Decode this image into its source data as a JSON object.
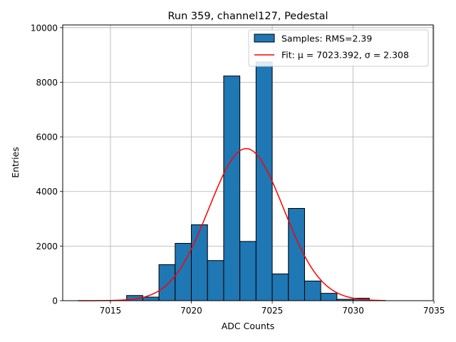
{
  "chart_data": {
    "type": "bar",
    "title": "Run 359, channel127, Pedestal",
    "xlabel": "ADC Counts",
    "ylabel": "Entries",
    "xlim": [
      7012.05,
      7034.95
    ],
    "ylim": [
      0,
      10100
    ],
    "xticks": [
      7015,
      7020,
      7025,
      7030,
      7035
    ],
    "yticks": [
      0,
      2000,
      4000,
      6000,
      8000,
      10000
    ],
    "grid": true,
    "legend_position": "top-right",
    "histogram": {
      "name": "Samples: RMS=2.39",
      "color": "#1f77b4",
      "bin_edges": [
        7016.0,
        7017.0,
        7018.0,
        7019.0,
        7020.0,
        7021.0,
        7022.0,
        7023.0,
        7024.0,
        7025.0,
        7026.0,
        7027.0,
        7028.0,
        7029.0,
        7030.0,
        7031.0
      ],
      "values": [
        190,
        130,
        1320,
        2100,
        2780,
        1470,
        8230,
        2170,
        8740,
        980,
        3380,
        720,
        270,
        50,
        90
      ]
    },
    "fit": {
      "name": "Fit: μ = 7023.392, σ = 2.308",
      "color": "#ff0000",
      "mu": 7023.392,
      "sigma": 2.308,
      "amplitude": 5570,
      "x_range": [
        7013.0,
        7032.0
      ]
    }
  }
}
